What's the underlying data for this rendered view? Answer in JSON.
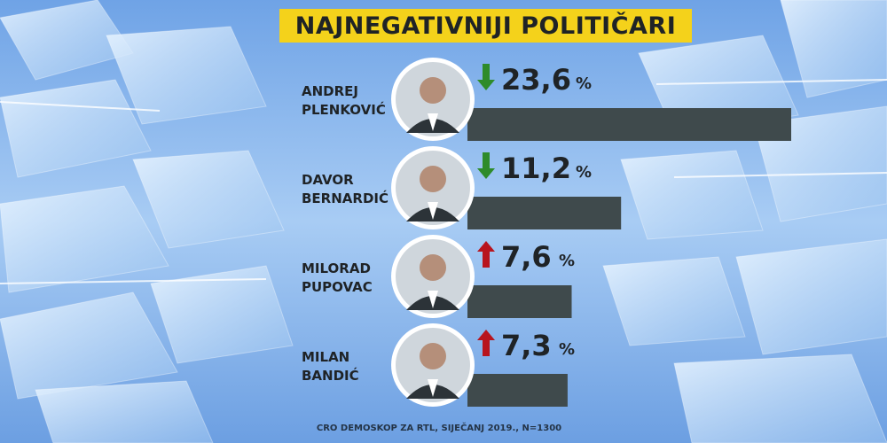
{
  "title": "NAJNEGATIVNIJI POLITIČARI",
  "source": "CRO DEMOSKOP ZA RTL, SIJEČANJ 2019., N=1300",
  "colors": {
    "bar": "#3f4a4c",
    "title_bg": "#f4d21b",
    "text": "#1f2326",
    "arrow_down": "#2e8b2a",
    "arrow_up": "#b8141e"
  },
  "chart_data": {
    "type": "bar",
    "orientation": "horizontal",
    "title": "NAJNEGATIVNIJI POLITIČARI",
    "categories": [
      "ANDREJ PLENKOVIĆ",
      "DAVOR BERNARDIĆ",
      "MILORAD PUPOVAC",
      "MILAN BANDIĆ"
    ],
    "values": [
      23.6,
      11.2,
      7.6,
      7.3
    ],
    "value_labels": [
      "23,6",
      "11,2",
      "7,6",
      "7,3"
    ],
    "unit": "%",
    "trend": [
      "down",
      "down",
      "up",
      "up"
    ],
    "items": [
      {
        "first": "ANDREJ",
        "last": "PLENKOVIĆ",
        "value": 23.6,
        "label": "23,6",
        "trend": "down"
      },
      {
        "first": "DAVOR",
        "last": "BERNARDIĆ",
        "value": 11.2,
        "label": "11,2",
        "trend": "down"
      },
      {
        "first": "MILORAD",
        "last": "PUPOVAC",
        "value": 7.6,
        "label": "7,6",
        "trend": "up"
      },
      {
        "first": "MILAN",
        "last": "BANDIĆ",
        "value": 7.3,
        "label": "7,3",
        "trend": "up"
      }
    ],
    "xlim": [
      0,
      23.6
    ]
  }
}
